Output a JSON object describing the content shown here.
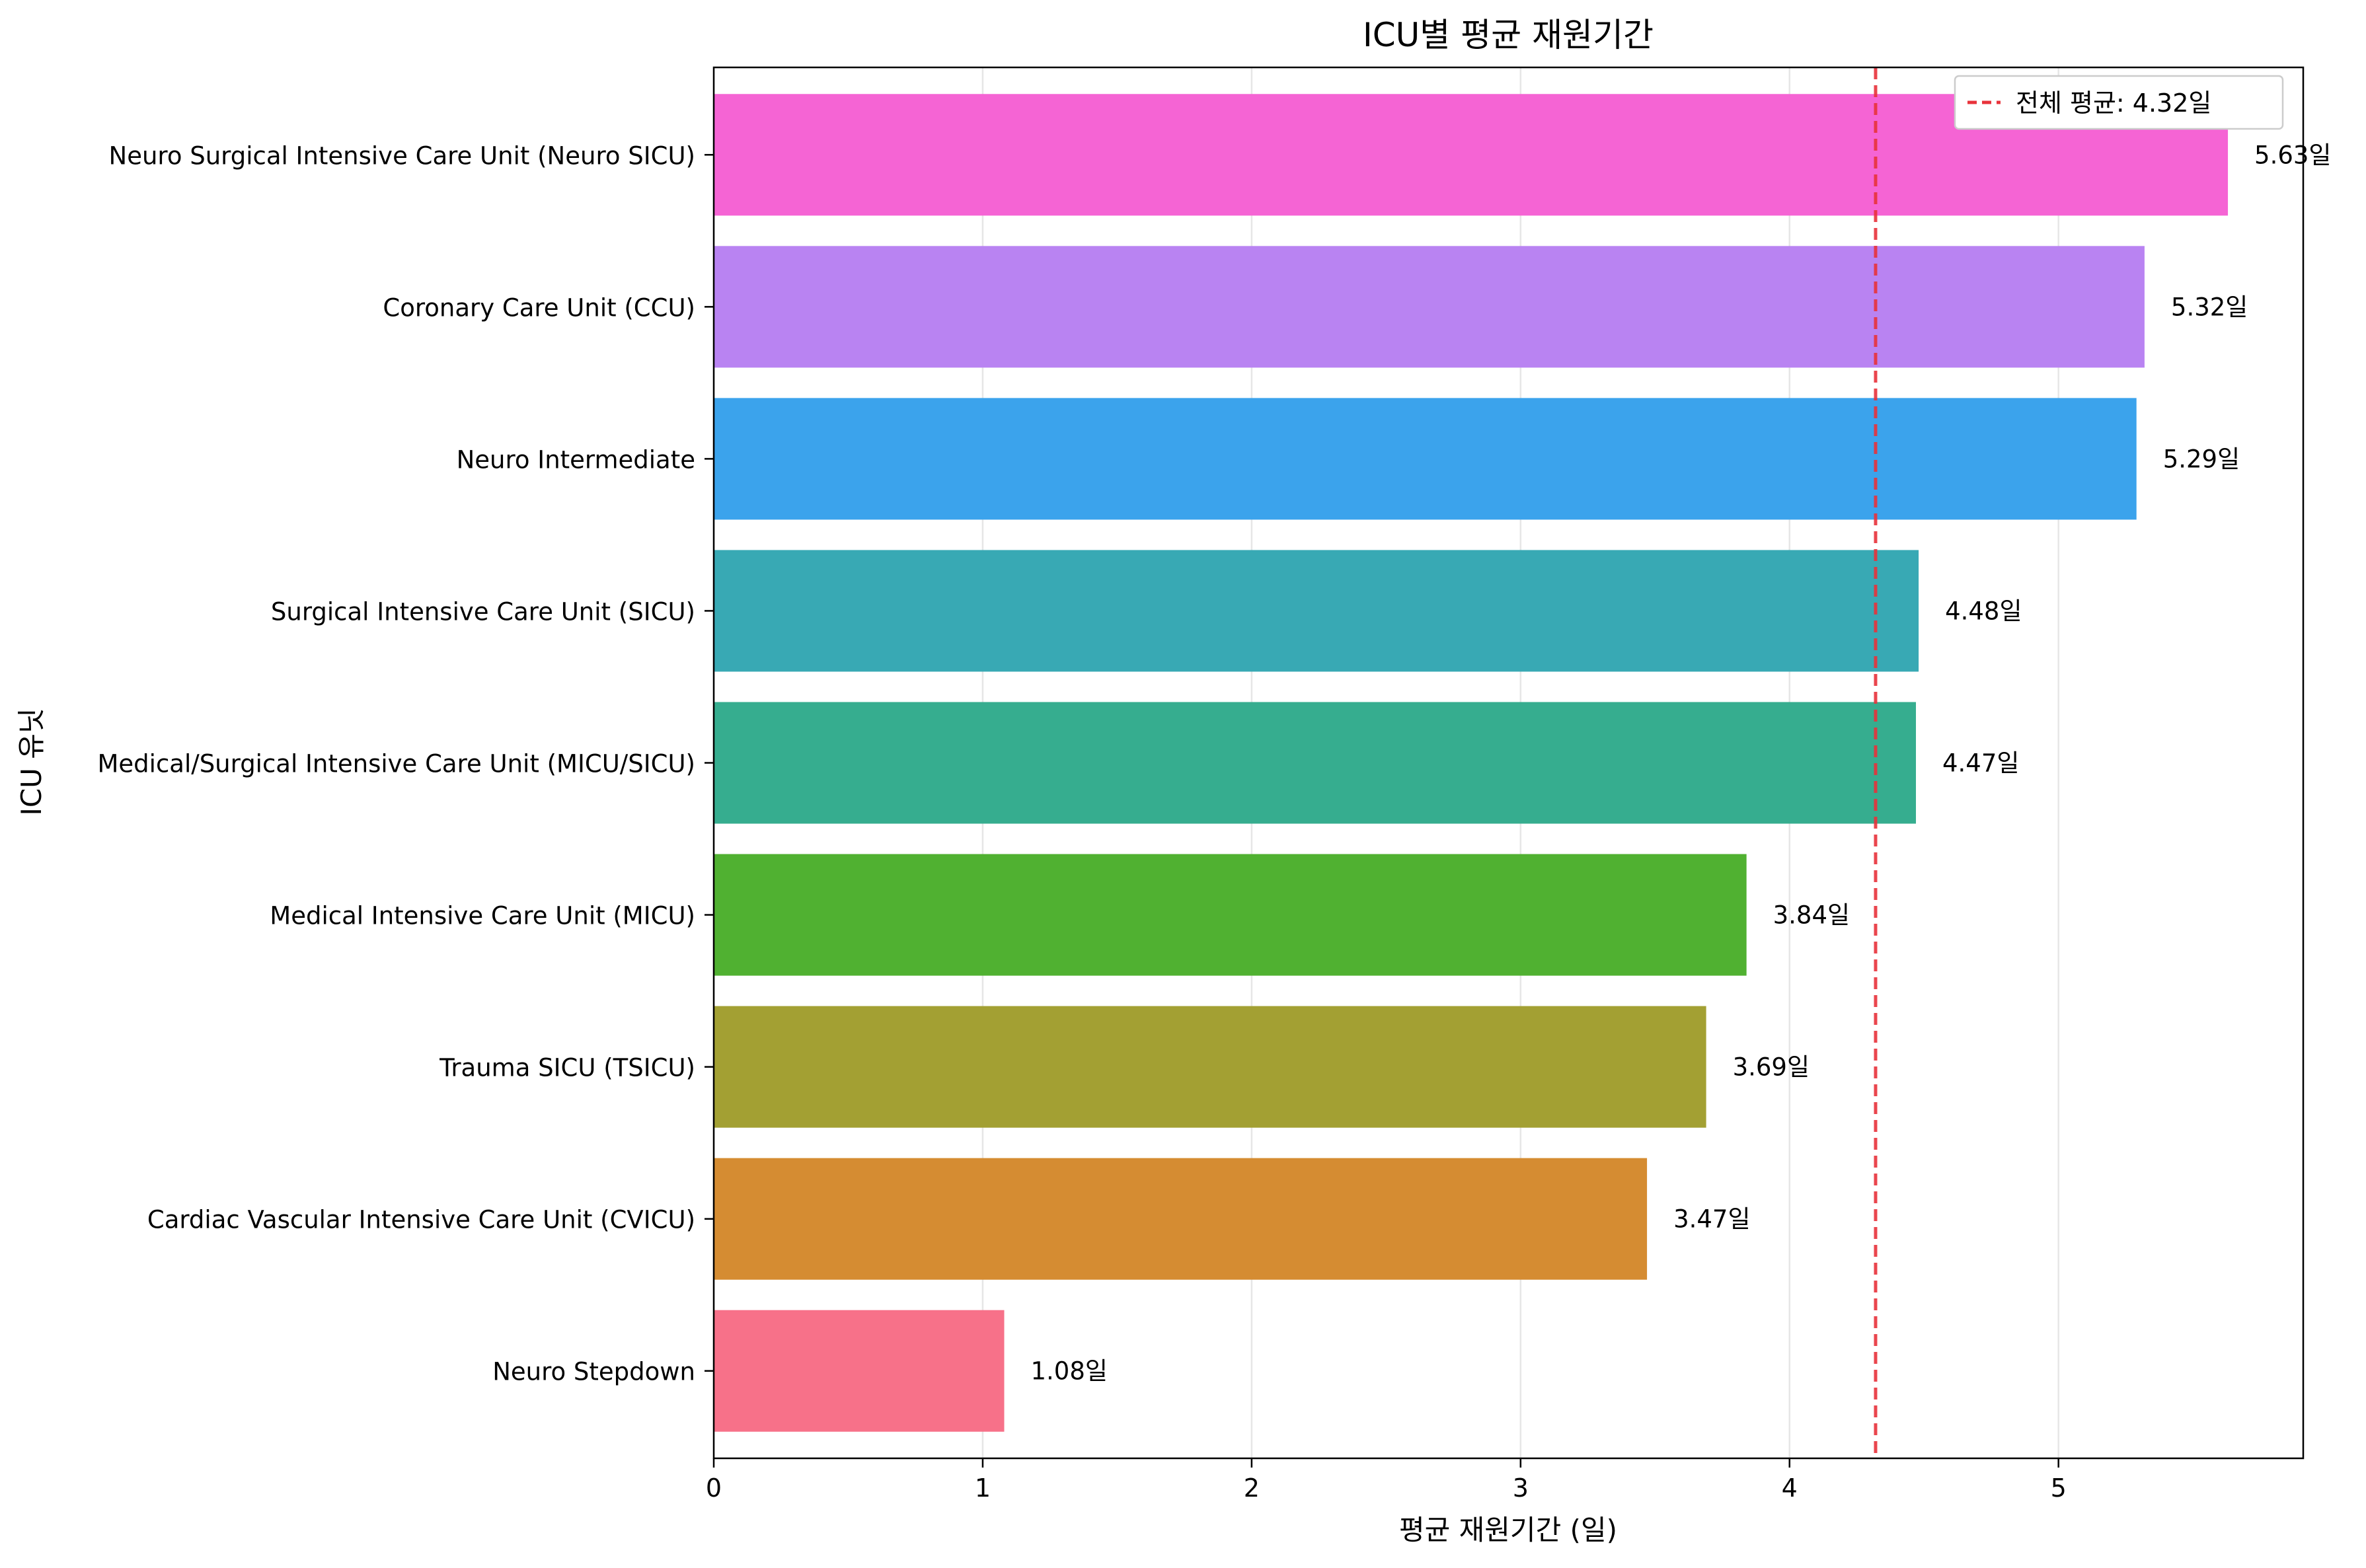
{
  "chart_data": {
    "type": "bar",
    "orientation": "horizontal",
    "title": "ICU별 평균 재원기간",
    "xlabel": "평균 재원기간 (일)",
    "ylabel": "ICU 유닛",
    "xlim": [
      0,
      5.91
    ],
    "xticks": [
      0,
      1,
      2,
      3,
      4,
      5
    ],
    "grid": "x",
    "legend_position": "top-right",
    "categories": [
      "Neuro Surgical Intensive Care Unit (Neuro SICU)",
      "Coronary Care Unit (CCU)",
      "Neuro Intermediate",
      "Surgical Intensive Care Unit (SICU)",
      "Medical/Surgical Intensive Care Unit (MICU/SICU)",
      "Medical Intensive Care Unit (MICU)",
      "Trauma SICU (TSICU)",
      "Cardiac Vascular Intensive Care Unit (CVICU)",
      "Neuro Stepdown"
    ],
    "values": [
      5.63,
      5.32,
      5.29,
      4.48,
      4.47,
      3.84,
      3.69,
      3.47,
      1.08
    ],
    "value_labels": [
      "5.63일",
      "5.32일",
      "5.29일",
      "4.48일",
      "4.47일",
      "3.84일",
      "3.69일",
      "3.47일",
      "1.08일"
    ],
    "colors": [
      "#f564d4",
      "#b983f2",
      "#3ba3ec",
      "#38a9b4",
      "#36ad8f",
      "#50b131",
      "#a3a033",
      "#d58c32",
      "#f77189"
    ],
    "reference_line": {
      "value": 4.32,
      "label": "전체 평균: 4.32일",
      "color": "#e8333b",
      "style": "dashed"
    }
  }
}
